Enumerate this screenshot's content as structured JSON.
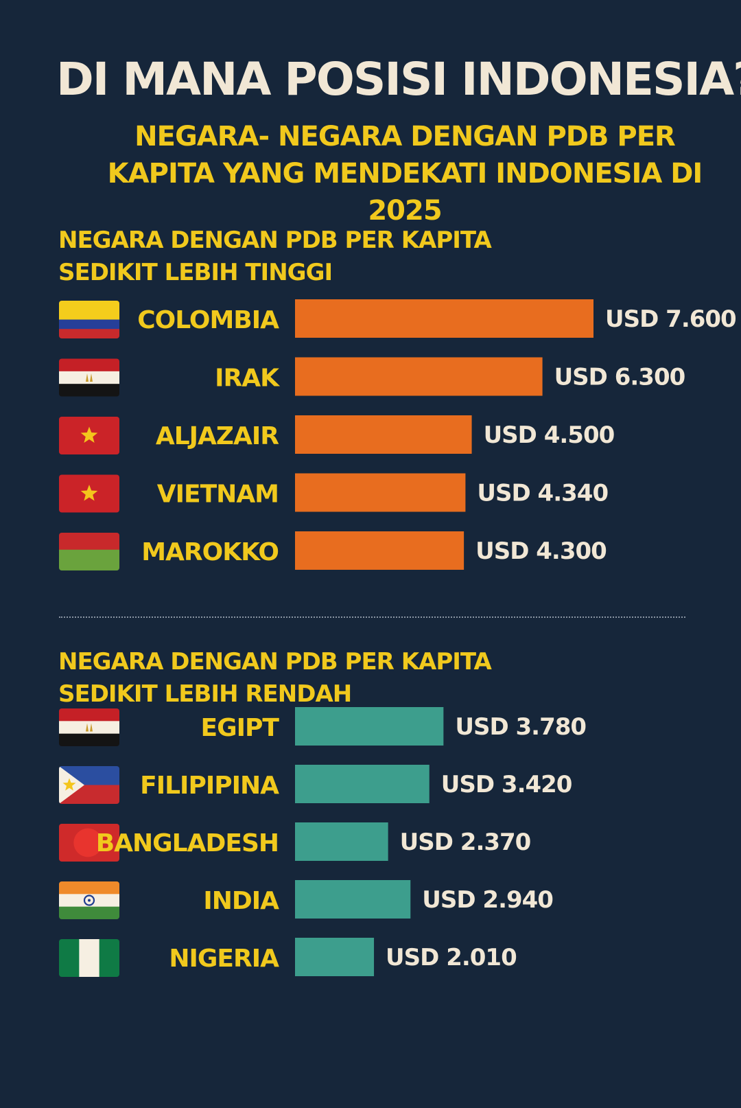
{
  "title": "DI MANA POSISI INDONESIA?",
  "subtitle": "NEGARA- NEGARA DENGAN PDB PER KAPITA YANG MENDEKATI INDONESIA DI 2025",
  "colors": {
    "background": "#16263a",
    "title_text": "#f1e7d5",
    "accent_yellow": "#f1c91d",
    "higher_bar": "#e86d1f",
    "lower_bar": "#3d9e8d",
    "value_text": "#f1e7d5"
  },
  "chart_data": [
    {
      "type": "bar",
      "title": "NEGARA DENGAN PDB PER KAPITA SEDIKIT LEBIH TINGGI",
      "orientation": "horizontal",
      "categories": [
        "COLOMBIA",
        "IRAK",
        "ALJAZAIR",
        "VIETNAM",
        "MAROKKO"
      ],
      "values": [
        7600,
        6300,
        4500,
        4340,
        4300
      ],
      "value_labels": [
        "USD 7.600",
        "USD 6.300",
        "USD 4.500",
        "USD 4.340",
        "USD 4.300"
      ],
      "flags": [
        "colombia-flag-icon",
        "egypt-flag-icon",
        "vietnam-flag-icon",
        "vietnam-flag-icon",
        "morocco-flag-icon"
      ],
      "color": "#e86d1f",
      "xlabel": "",
      "ylabel": "",
      "grid": false
    },
    {
      "type": "bar",
      "title": "NEGARA DENGAN PDB PER KAPITA SEDIKIT LEBIH RENDAH",
      "orientation": "horizontal",
      "categories": [
        "EGIPT",
        "FILIPIPINA",
        "BANGLADESH",
        "INDIA",
        "NIGERIA"
      ],
      "values": [
        3780,
        3420,
        2370,
        2940,
        2010
      ],
      "value_labels": [
        "USD 3.780",
        "USD 3.420",
        "USD 2.370",
        "USD 2.940",
        "USD 2.010"
      ],
      "flags": [
        "egypt-flag-icon",
        "philippines-flag-icon",
        "bangladesh-flag-icon",
        "india-flag-icon",
        "nigeria-flag-icon"
      ],
      "color": "#3d9e8d",
      "xlabel": "",
      "ylabel": "",
      "grid": false
    }
  ]
}
